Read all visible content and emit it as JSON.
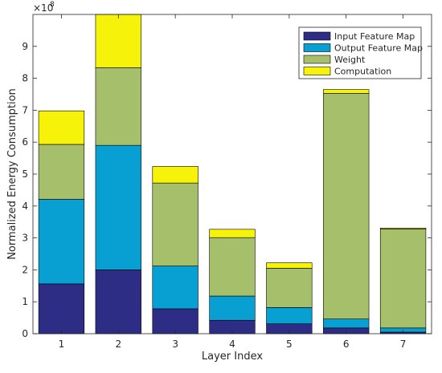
{
  "chart_data": {
    "type": "bar",
    "stacked": true,
    "categories": [
      "1",
      "2",
      "3",
      "4",
      "5",
      "6",
      "7"
    ],
    "xlabel": "Layer Index",
    "ylabel": "Normalized Energy Consumption",
    "ylim": [
      0,
      10
    ],
    "y_exponent_label": "×10",
    "y_exponent_power": "8",
    "yticks": [
      0,
      1,
      2,
      3,
      4,
      5,
      6,
      7,
      8,
      9
    ],
    "grid": false,
    "legend_position": "top-right",
    "series": [
      {
        "name": "Input Feature Map",
        "color": "#2e2d86",
        "values": [
          1.56,
          2.0,
          0.78,
          0.42,
          0.31,
          0.18,
          0.05
        ]
      },
      {
        "name": "Output Feature Map",
        "color": "#089fd2",
        "values": [
          2.65,
          3.9,
          1.34,
          0.76,
          0.51,
          0.28,
          0.13
        ]
      },
      {
        "name": "Weight",
        "color": "#a5bf6b",
        "values": [
          1.72,
          2.43,
          2.6,
          1.83,
          1.23,
          7.07,
          3.1
        ]
      },
      {
        "name": "Computation",
        "color": "#f6f20a",
        "values": [
          1.05,
          1.67,
          0.52,
          0.26,
          0.17,
          0.12,
          0.03
        ]
      }
    ]
  }
}
